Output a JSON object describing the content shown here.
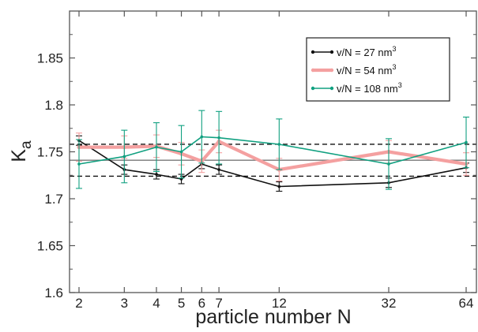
{
  "chart_data": {
    "type": "line",
    "xlabel": "particle number N",
    "ylabel": "K",
    "ylabel_sub": "a",
    "x": [
      2,
      3,
      4,
      5,
      6,
      7,
      12,
      32,
      64
    ],
    "x_tick_labels": [
      "2",
      "3",
      "4",
      "5",
      "6",
      "7",
      "12",
      "32",
      "64"
    ],
    "x_scale": "log",
    "xlim": [
      1,
      64
    ],
    "ylim": [
      1.6,
      1.9
    ],
    "y_ticks": [
      1.6,
      1.65,
      1.7,
      1.75,
      1.8,
      1.85
    ],
    "y_tick_labels": [
      "1.6",
      "1.65",
      "1.7",
      "1.75",
      "1.8",
      "1.85"
    ],
    "grid": false,
    "legend_position": "top-right",
    "series": [
      {
        "name": "v/N = 27 nm",
        "name_sup": "3",
        "color": "#111111",
        "values": [
          1.762,
          1.731,
          1.726,
          1.721,
          1.737,
          1.731,
          1.713,
          1.717,
          1.733
        ],
        "errors": [
          0.005,
          0.005,
          0.005,
          0.005,
          0.005,
          0.005,
          0.005,
          0.005,
          0.005
        ]
      },
      {
        "name": "v/N = 54 nm",
        "name_sup": "3",
        "color": "#f4a0a0",
        "values": [
          1.755,
          1.755,
          1.756,
          1.748,
          1.74,
          1.761,
          1.731,
          1.75,
          1.737
        ],
        "errors": [
          0.015,
          0.012,
          0.012,
          0.012,
          0.012,
          0.012,
          0.012,
          0.012,
          0.012
        ]
      },
      {
        "name": "v/N = 108 nm",
        "name_sup": "3",
        "color": "#10a080",
        "values": [
          1.737,
          1.745,
          1.755,
          1.75,
          1.766,
          1.765,
          1.758,
          1.737,
          1.76
        ],
        "errors": [
          0.026,
          0.028,
          0.026,
          0.028,
          0.028,
          0.028,
          0.027,
          0.027,
          0.027
        ]
      }
    ],
    "reference_lines": [
      {
        "y": 1.741,
        "style": "solid",
        "color": "#777777"
      },
      {
        "y": 1.758,
        "style": "dashed",
        "color": "#111111"
      },
      {
        "y": 1.724,
        "style": "dashed",
        "color": "#111111"
      }
    ]
  }
}
